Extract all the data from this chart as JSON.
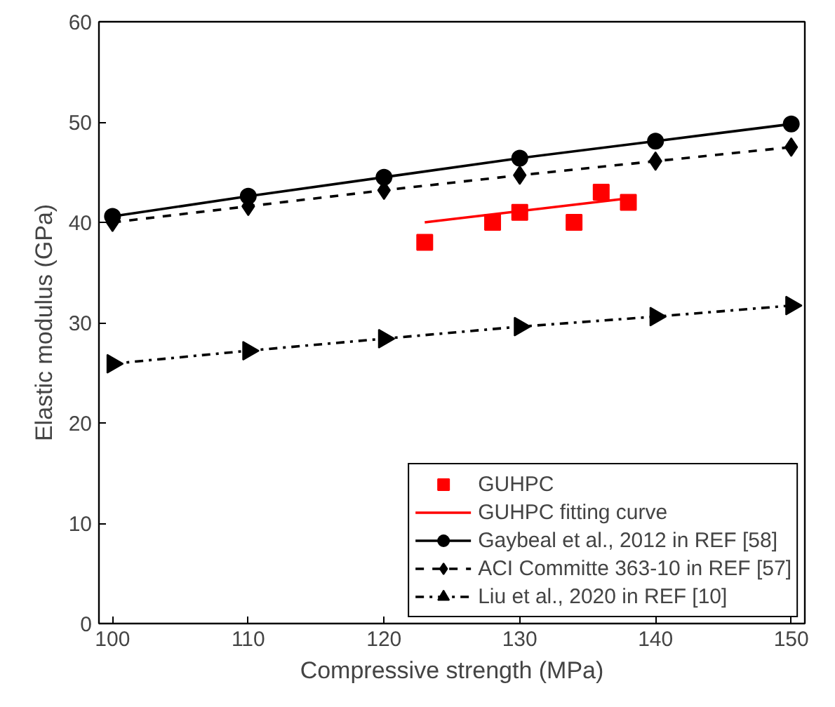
{
  "chart_data": {
    "type": "line",
    "xlabel": "Compressive strength (MPa)",
    "ylabel": "Elastic modulus (GPa)",
    "xlim": [
      99,
      151
    ],
    "ylim": [
      0,
      60
    ],
    "xticks": [
      100,
      110,
      120,
      130,
      140,
      150
    ],
    "yticks": [
      0,
      10,
      20,
      30,
      40,
      50,
      60
    ],
    "grid": false,
    "legend": "bottom right",
    "series": [
      {
        "name": "GUHPC",
        "type": "scatter",
        "marker": "square",
        "color": "#ff0000",
        "x": [
          123,
          128,
          130,
          134,
          136,
          138
        ],
        "values": [
          38.0,
          40.0,
          41.0,
          40.0,
          43.0,
          42.0
        ]
      },
      {
        "name": "GUHPC fitting curve",
        "marker": "none",
        "line_style": "solid",
        "color": "#ff0000",
        "x": [
          123,
          138
        ],
        "values": [
          40.0,
          42.4
        ]
      },
      {
        "name": "Gaybeal et al., 2012 in REF [58]",
        "marker": "circle",
        "line_style": "solid",
        "color": "#000000",
        "x": [
          100,
          110,
          120,
          130,
          140,
          150
        ],
        "values": [
          40.6,
          42.6,
          44.5,
          46.4,
          48.1,
          49.8
        ]
      },
      {
        "name": "ACI Committe 363-10 in REF [57]",
        "marker": "diamond",
        "line_style": "dashed",
        "color": "#000000",
        "x": [
          100,
          110,
          120,
          130,
          140,
          150
        ],
        "values": [
          40.0,
          41.6,
          43.2,
          44.7,
          46.1,
          47.5
        ]
      },
      {
        "name": "Liu et al., 2020 in REF [10]",
        "marker": "triangle",
        "line_style": "dashdot",
        "color": "#000000",
        "x": [
          100,
          110,
          120,
          130,
          140,
          150
        ],
        "values": [
          25.9,
          27.2,
          28.4,
          29.6,
          30.6,
          31.7
        ]
      }
    ]
  }
}
